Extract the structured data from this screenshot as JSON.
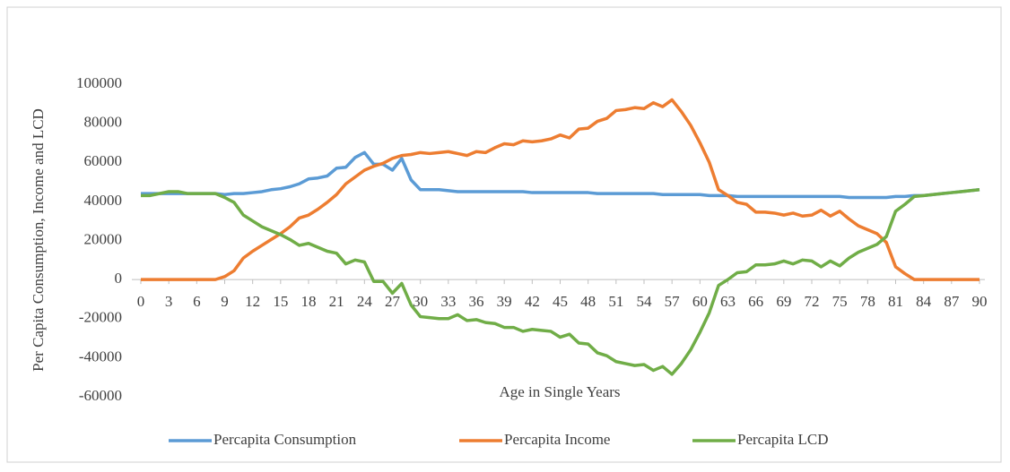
{
  "chart_data": {
    "type": "line",
    "y_label": "Per Capita Consumption, Income and LCD",
    "x_label": "Age in Single Years",
    "x": [
      0,
      1,
      2,
      3,
      4,
      5,
      6,
      7,
      8,
      9,
      10,
      11,
      12,
      13,
      14,
      15,
      16,
      17,
      18,
      19,
      20,
      21,
      22,
      23,
      24,
      25,
      26,
      27,
      28,
      29,
      30,
      31,
      32,
      33,
      34,
      35,
      36,
      37,
      38,
      39,
      40,
      41,
      42,
      43,
      44,
      45,
      46,
      47,
      48,
      49,
      50,
      51,
      52,
      53,
      54,
      55,
      56,
      57,
      58,
      59,
      60,
      61,
      62,
      63,
      64,
      65,
      66,
      67,
      68,
      69,
      70,
      71,
      72,
      73,
      74,
      75,
      76,
      77,
      78,
      79,
      80,
      81,
      82,
      83,
      84,
      85,
      86,
      87,
      88,
      89,
      90
    ],
    "xlim": [
      0,
      90
    ],
    "xticks": [
      0,
      3,
      6,
      9,
      12,
      15,
      18,
      21,
      24,
      27,
      30,
      33,
      36,
      39,
      42,
      45,
      48,
      51,
      54,
      57,
      60,
      63,
      66,
      69,
      72,
      75,
      78,
      81,
      84,
      87,
      90
    ],
    "ylim": [
      -60000,
      100000
    ],
    "yticks": [
      -60000,
      -40000,
      -20000,
      0,
      20000,
      40000,
      60000,
      80000,
      100000
    ],
    "grid": false,
    "legend": "bottom",
    "series": [
      {
        "name": "Percapita Consumption",
        "color": "#5b9bd5",
        "values": [
          44000,
          44000,
          44000,
          44000,
          44000,
          44000,
          44000,
          44000,
          44000,
          43500,
          44000,
          44000,
          44500,
          45000,
          46000,
          46500,
          47500,
          49000,
          51500,
          52000,
          53000,
          57000,
          57500,
          62500,
          65000,
          59000,
          59000,
          56000,
          62000,
          51000,
          46000,
          46000,
          46000,
          45500,
          45000,
          45000,
          45000,
          45000,
          45000,
          45000,
          45000,
          45000,
          44500,
          44500,
          44500,
          44500,
          44500,
          44500,
          44500,
          44000,
          44000,
          44000,
          44000,
          44000,
          44000,
          44000,
          43500,
          43500,
          43500,
          43500,
          43500,
          43000,
          43000,
          43000,
          42500,
          42500,
          42500,
          42500,
          42500,
          42500,
          42500,
          42500,
          42500,
          42500,
          42500,
          42500,
          42000,
          42000,
          42000,
          42000,
          42000,
          42500,
          42500,
          43000,
          43000,
          43500,
          44000,
          44500,
          45000,
          45500,
          46000
        ]
      },
      {
        "name": "Percapita Income",
        "color": "#ed7d31",
        "values": [
          0,
          0,
          0,
          0,
          0,
          0,
          0,
          0,
          0,
          1500,
          4500,
          11000,
          14500,
          17500,
          20500,
          23500,
          27000,
          31500,
          33000,
          36000,
          39500,
          43500,
          49000,
          52500,
          56000,
          58000,
          59500,
          62000,
          63500,
          64000,
          65000,
          64500,
          65000,
          65500,
          64500,
          63500,
          65500,
          65000,
          67500,
          69500,
          69000,
          71000,
          70500,
          71000,
          72000,
          74000,
          72500,
          77000,
          77500,
          81000,
          82500,
          86500,
          87000,
          88000,
          87500,
          90500,
          88500,
          92000,
          86000,
          79000,
          70000,
          60000,
          46000,
          43000,
          39500,
          38500,
          34500,
          34500,
          34000,
          33000,
          34000,
          32500,
          33000,
          35500,
          32500,
          35000,
          31000,
          27500,
          25500,
          23500,
          19000,
          6500,
          3000,
          0,
          0,
          0,
          0,
          0,
          0,
          0,
          0
        ]
      },
      {
        "name": "Percapita LCD",
        "color": "#70ad47",
        "values": [
          43000,
          43000,
          44000,
          45000,
          45000,
          44000,
          44000,
          44000,
          44000,
          42000,
          39500,
          33000,
          30000,
          27000,
          25000,
          23000,
          20500,
          17500,
          18500,
          16500,
          14500,
          13500,
          8000,
          10000,
          9000,
          -1000,
          -1000,
          -7000,
          -2000,
          -13000,
          -19000,
          -19500,
          -20000,
          -20000,
          -18000,
          -21000,
          -20500,
          -22000,
          -22500,
          -24500,
          -24500,
          -26500,
          -25500,
          -26000,
          -26500,
          -29500,
          -28000,
          -32500,
          -33000,
          -37500,
          -39000,
          -42000,
          -43000,
          -44000,
          -43500,
          -46500,
          -44500,
          -48500,
          -43000,
          -36000,
          -27000,
          -17000,
          -3000,
          0,
          3500,
          4000,
          7500,
          7500,
          8000,
          9500,
          8000,
          10000,
          9500,
          6500,
          9500,
          7000,
          11000,
          14000,
          16000,
          18000,
          22000,
          35000,
          38500,
          42500,
          43000,
          43500,
          44000,
          44500,
          45000,
          45500,
          46000
        ]
      }
    ]
  }
}
